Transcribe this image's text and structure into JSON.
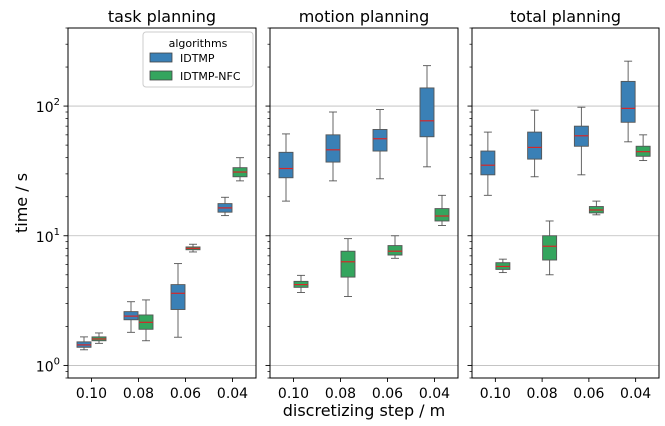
{
  "chart_data": {
    "type": "box",
    "ylabel": "time / s",
    "xlabel": "discretizing step / m",
    "yscale": "log",
    "ylim": [
      0.8,
      400
    ],
    "yticks": [
      {
        "value": 1,
        "label": "10",
        "exp": "0"
      },
      {
        "value": 10,
        "label": "10",
        "exp": "1"
      },
      {
        "value": 100,
        "label": "10",
        "exp": "2"
      }
    ],
    "grid": "horizontal at decades",
    "categories": [
      "0.10",
      "0.08",
      "0.06",
      "0.04"
    ],
    "legend": {
      "title": "algorithms",
      "placement": "top-right of first panel",
      "entries": [
        {
          "name": "IDTMP",
          "color": "#3a80b6"
        },
        {
          "name": "IDTMP-NFC",
          "color": "#34a55e"
        }
      ]
    },
    "median_color": "#d62728",
    "panels": [
      {
        "title": "task planning",
        "series": [
          {
            "name": "IDTMP",
            "boxes": [
              {
                "whislo": 1.32,
                "q1": 1.38,
                "med": 1.44,
                "q3": 1.52,
                "whishi": 1.66
              },
              {
                "whislo": 1.8,
                "q1": 2.25,
                "med": 2.4,
                "q3": 2.6,
                "whishi": 3.1
              },
              {
                "whislo": 1.65,
                "q1": 2.7,
                "med": 3.6,
                "q3": 4.2,
                "whishi": 6.1
              },
              {
                "whislo": 14.3,
                "q1": 15.2,
                "med": 16.4,
                "q3": 17.7,
                "whishi": 19.8
              }
            ]
          },
          {
            "name": "IDTMP-NFC",
            "boxes": [
              {
                "whislo": 1.48,
                "q1": 1.55,
                "med": 1.6,
                "q3": 1.66,
                "whishi": 1.78
              },
              {
                "whislo": 1.55,
                "q1": 1.9,
                "med": 2.15,
                "q3": 2.45,
                "whishi": 3.2
              },
              {
                "whislo": 7.5,
                "q1": 7.8,
                "med": 8.0,
                "q3": 8.2,
                "whishi": 8.6
              },
              {
                "whislo": 26.5,
                "q1": 28.5,
                "med": 31.0,
                "q3": 33.5,
                "whishi": 40.0
              }
            ]
          }
        ]
      },
      {
        "title": "motion planning",
        "series": [
          {
            "name": "IDTMP",
            "boxes": [
              {
                "whislo": 18.5,
                "q1": 28.0,
                "med": 33.0,
                "q3": 44.0,
                "whishi": 61.0
              },
              {
                "whislo": 26.5,
                "q1": 37.0,
                "med": 46.0,
                "q3": 60.0,
                "whishi": 90.0
              },
              {
                "whislo": 27.5,
                "q1": 45.0,
                "med": 56.0,
                "q3": 66.0,
                "whishi": 94.0
              },
              {
                "whislo": 34.0,
                "q1": 58.0,
                "med": 77.0,
                "q3": 138.0,
                "whishi": 205.0
              }
            ]
          },
          {
            "name": "IDTMP-NFC",
            "boxes": [
              {
                "whislo": 3.65,
                "q1": 4.0,
                "med": 4.2,
                "q3": 4.45,
                "whishi": 4.95
              },
              {
                "whislo": 3.4,
                "q1": 4.8,
                "med": 6.3,
                "q3": 7.6,
                "whishi": 9.5
              },
              {
                "whislo": 6.7,
                "q1": 7.1,
                "med": 7.6,
                "q3": 8.4,
                "whishi": 10.0
              },
              {
                "whislo": 12.0,
                "q1": 13.0,
                "med": 14.2,
                "q3": 16.2,
                "whishi": 20.5
              }
            ]
          }
        ]
      },
      {
        "title": "total planning",
        "series": [
          {
            "name": "IDTMP",
            "boxes": [
              {
                "whislo": 20.5,
                "q1": 29.5,
                "med": 35.0,
                "q3": 45.0,
                "whishi": 63.0
              },
              {
                "whislo": 28.5,
                "q1": 39.0,
                "med": 48.0,
                "q3": 63.0,
                "whishi": 93.0
              },
              {
                "whislo": 29.5,
                "q1": 49.0,
                "med": 59.0,
                "q3": 70.0,
                "whishi": 98.0
              },
              {
                "whislo": 53.0,
                "q1": 75.0,
                "med": 96.0,
                "q3": 155.0,
                "whishi": 222.0
              }
            ]
          },
          {
            "name": "IDTMP-NFC",
            "boxes": [
              {
                "whislo": 5.2,
                "q1": 5.5,
                "med": 5.8,
                "q3": 6.2,
                "whishi": 6.6
              },
              {
                "whislo": 5.0,
                "q1": 6.5,
                "med": 8.3,
                "q3": 10.0,
                "whishi": 13.0
              },
              {
                "whislo": 14.5,
                "q1": 15.0,
                "med": 15.8,
                "q3": 16.8,
                "whishi": 18.5
              },
              {
                "whislo": 38.0,
                "q1": 41.0,
                "med": 44.5,
                "q3": 49.0,
                "whishi": 60.0
              }
            ]
          }
        ]
      }
    ]
  }
}
